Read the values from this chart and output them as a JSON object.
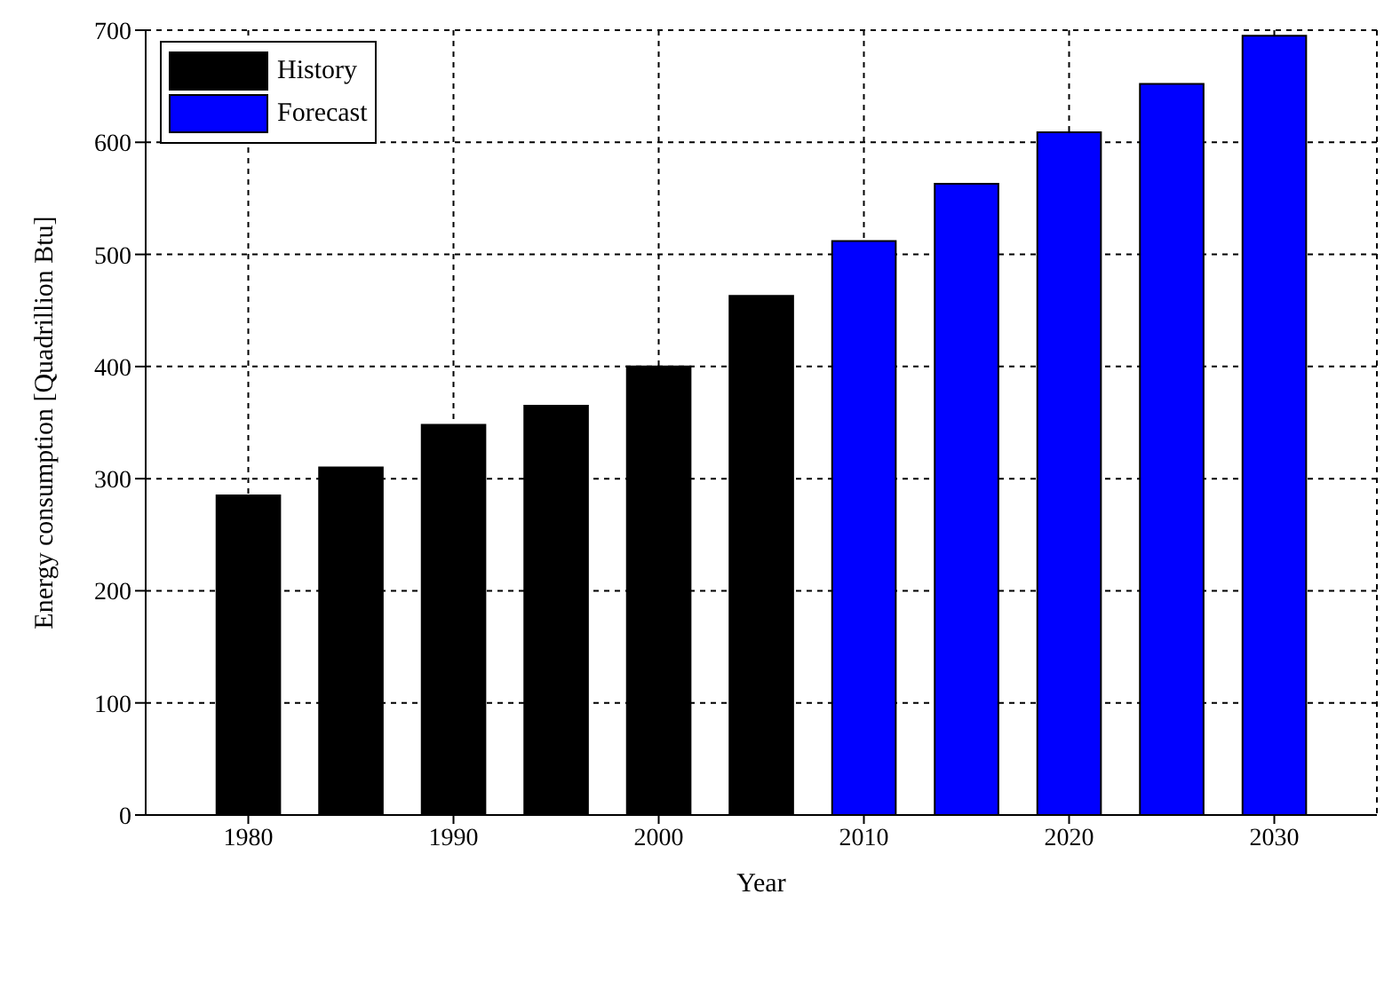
{
  "chart_data": {
    "type": "bar",
    "xlabel": "Year",
    "ylabel": "Energy consumption [Quadrillion Btu]",
    "series": [
      {
        "name": "History",
        "color": "#000000",
        "x": [
          1980,
          1985,
          1990,
          1995,
          2000,
          2005
        ],
        "values": [
          285,
          310,
          348,
          365,
          400,
          463
        ]
      },
      {
        "name": "Forecast",
        "color": "#0000ff",
        "x": [
          2010,
          2015,
          2020,
          2025,
          2030
        ],
        "values": [
          512,
          563,
          609,
          652,
          695
        ]
      }
    ],
    "xlim": [
      1975,
      2035
    ],
    "xticks": [
      1980,
      1990,
      2000,
      2010,
      2020,
      2030
    ],
    "ylim": [
      0,
      700
    ],
    "yticks": [
      0,
      100,
      200,
      300,
      400,
      500,
      600,
      700
    ],
    "grid": true,
    "legend": "top left"
  }
}
